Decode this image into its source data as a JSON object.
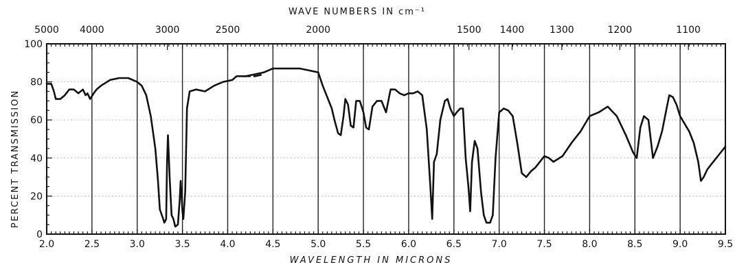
{
  "chart_data": {
    "type": "line",
    "title": "",
    "xlabel": "WAVELENGTH IN MICRONS",
    "ylabel": "PERCENT TRANSMISSION",
    "top_axis_label": "WAVE NUMBERS IN cm⁻¹",
    "xlim": [
      2.0,
      9.5
    ],
    "ylim": [
      0,
      100
    ],
    "x_ticks": [
      "2.0",
      "2.5",
      "3.0",
      "3.5",
      "4.0",
      "4.5",
      "5.0",
      "5.5",
      "6.0",
      "6.5",
      "7.0",
      "7.5",
      "8.0",
      "8.5",
      "9.0",
      "9.5"
    ],
    "y_ticks": [
      "0",
      "20",
      "40",
      "60",
      "80",
      "100"
    ],
    "top_ticks": [
      {
        "label": "5000",
        "wavenumber": 5000
      },
      {
        "label": "4000",
        "wavenumber": 4000
      },
      {
        "label": "3000",
        "wavenumber": 3000
      },
      {
        "label": "2500",
        "wavenumber": 2500
      },
      {
        "label": "2000",
        "wavenumber": 2000
      },
      {
        "label": "1500",
        "wavenumber": 1500
      },
      {
        "label": "1400",
        "wavenumber": 1400
      },
      {
        "label": "1300",
        "wavenumber": 1300
      },
      {
        "label": "1200",
        "wavenumber": 1200
      },
      {
        "label": "1100",
        "wavenumber": 1100
      }
    ],
    "grid": true,
    "series": [
      {
        "x": [
          2.0,
          2.05,
          2.08,
          2.1,
          2.15,
          2.2,
          2.25,
          2.3,
          2.35,
          2.4,
          2.43,
          2.45,
          2.48,
          2.52,
          2.55,
          2.6,
          2.7,
          2.8,
          2.9,
          3.0,
          3.05,
          3.1,
          3.15,
          3.2,
          3.23,
          3.25,
          3.28,
          3.3,
          3.32,
          3.33,
          3.34,
          3.36,
          3.38,
          3.4,
          3.42,
          3.45,
          3.47,
          3.48,
          3.5,
          3.51,
          3.53,
          3.55,
          3.58,
          3.65,
          3.75,
          3.85,
          3.95,
          4.05,
          4.1,
          4.15,
          4.2,
          4.3,
          4.4,
          4.5,
          4.6,
          4.7,
          4.8,
          4.9,
          5.0,
          5.05,
          5.1,
          5.15,
          5.18,
          5.22,
          5.25,
          5.28,
          5.3,
          5.33,
          5.36,
          5.39,
          5.42,
          5.46,
          5.5,
          5.53,
          5.56,
          5.6,
          5.65,
          5.7,
          5.75,
          5.8,
          5.85,
          5.9,
          5.95,
          6.0,
          6.05,
          6.1,
          6.15,
          6.2,
          6.24,
          6.26,
          6.28,
          6.31,
          6.35,
          6.4,
          6.43,
          6.46,
          6.5,
          6.53,
          6.57,
          6.6,
          6.63,
          6.66,
          6.68,
          6.7,
          6.73,
          6.76,
          6.8,
          6.83,
          6.86,
          6.9,
          6.93,
          6.96,
          7.0,
          7.05,
          7.1,
          7.15,
          7.2,
          7.25,
          7.3,
          7.35,
          7.4,
          7.45,
          7.5,
          7.55,
          7.6,
          7.7,
          7.8,
          7.9,
          8.0,
          8.1,
          8.2,
          8.3,
          8.4,
          8.48,
          8.52,
          8.56,
          8.6,
          8.65,
          8.7,
          8.75,
          8.8,
          8.85,
          8.88,
          8.92,
          8.96,
          9.0,
          9.05,
          9.1,
          9.15,
          9.2,
          9.23,
          9.26,
          9.3,
          9.35,
          9.4,
          9.45,
          9.5
        ],
        "y": [
          79,
          79,
          75,
          71,
          71,
          73,
          76,
          76,
          74,
          76,
          73,
          74,
          71,
          74,
          76,
          78,
          81,
          82,
          82,
          80,
          78,
          73,
          62,
          45,
          28,
          13,
          9,
          6,
          8,
          38,
          52,
          28,
          10,
          8,
          4,
          5,
          18,
          28,
          12,
          8,
          22,
          66,
          75,
          76,
          75,
          78,
          80,
          81,
          83,
          83,
          83,
          84,
          85,
          87,
          87,
          87,
          87,
          86,
          85,
          78,
          72,
          66,
          60,
          53,
          52,
          62,
          71,
          68,
          57,
          56,
          70,
          70,
          64,
          56,
          55,
          67,
          70,
          70,
          64,
          76,
          76,
          74,
          73,
          74,
          74,
          75,
          73,
          55,
          25,
          8,
          38,
          42,
          60,
          70,
          71,
          66,
          62,
          64,
          66,
          66,
          40,
          25,
          12,
          38,
          49,
          45,
          22,
          10,
          6,
          6,
          10,
          40,
          64,
          66,
          65,
          62,
          48,
          32,
          30,
          33,
          35,
          38,
          41,
          40,
          38,
          41,
          48,
          54,
          62,
          64,
          67,
          62,
          52,
          43,
          40,
          56,
          62,
          60,
          40,
          46,
          54,
          66,
          73,
          72,
          68,
          62,
          58,
          54,
          48,
          38,
          28,
          30,
          34,
          37,
          40,
          43,
          46
        ]
      }
    ],
    "gap_segment": {
      "x": [
        4.17,
        4.3,
        4.4
      ],
      "y": [
        83,
        83,
        84
      ]
    }
  }
}
